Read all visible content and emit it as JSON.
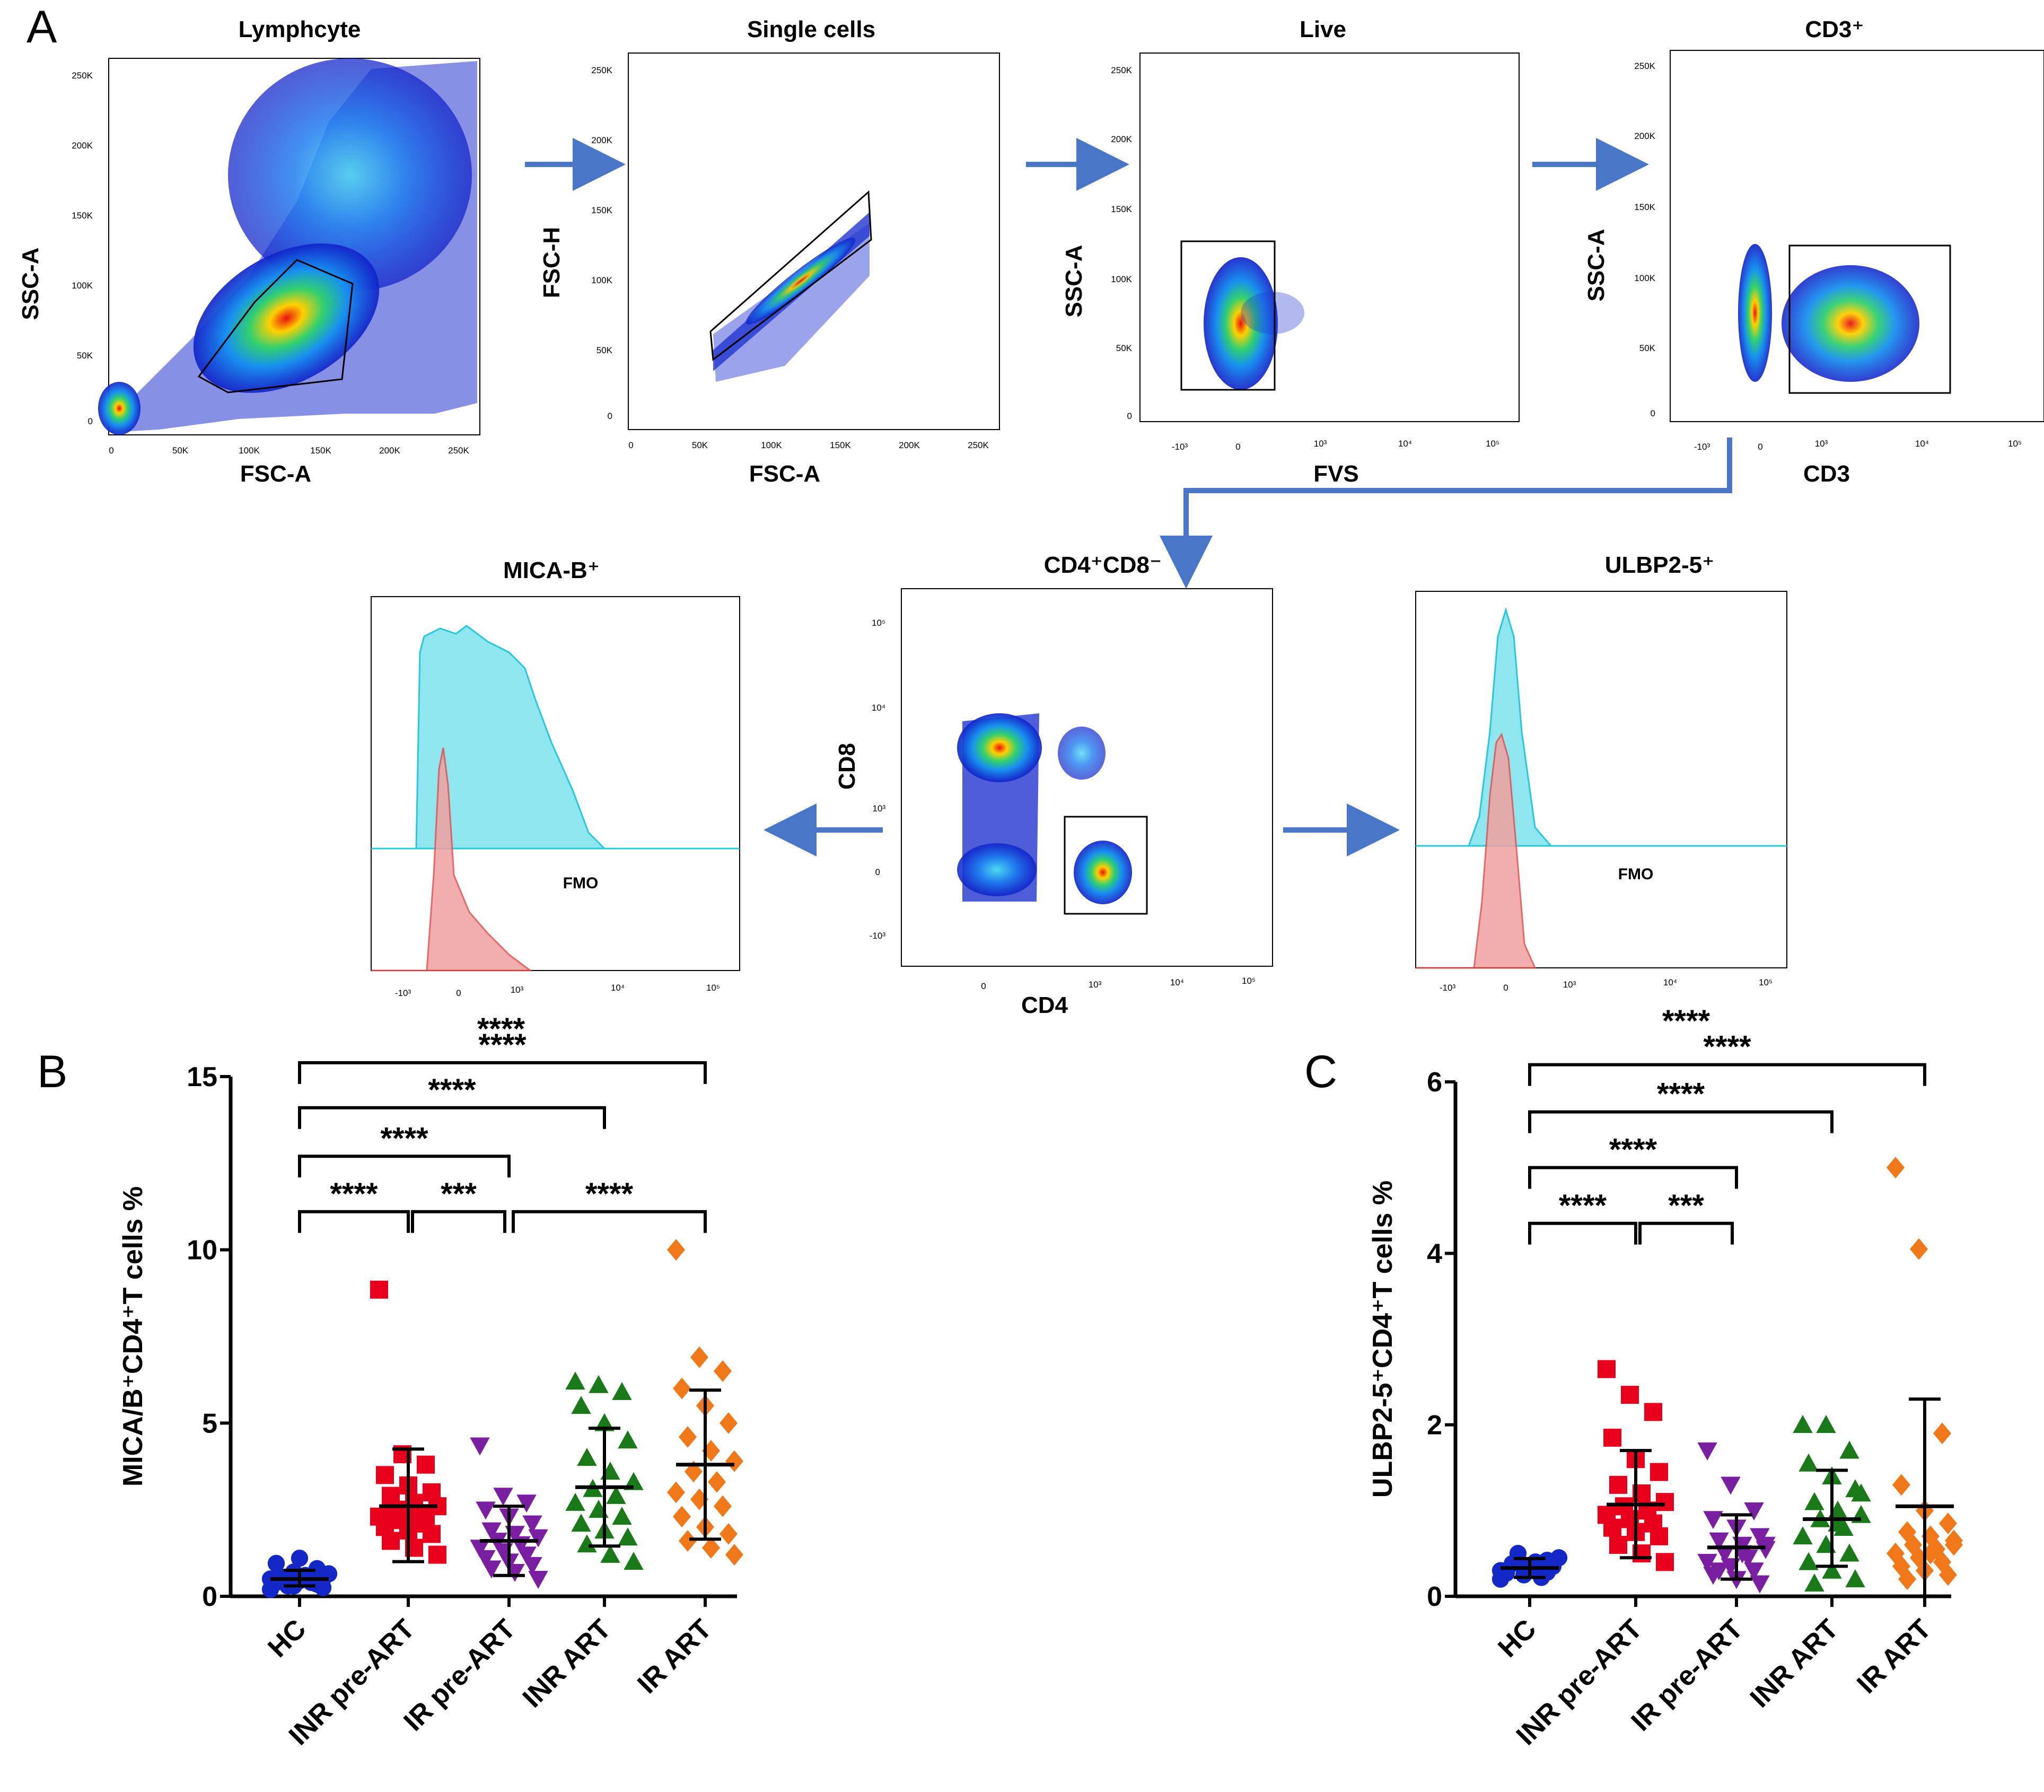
{
  "panel_letters": {
    "a": "A",
    "b": "B",
    "c": "C"
  },
  "flow": {
    "lymph": {
      "title": "Lymphcyte",
      "xlabel": "FSC-A",
      "ylabel": "SSC-A",
      "yticks": [
        "250K",
        "200K",
        "150K",
        "100K",
        "50K",
        "0"
      ],
      "xticks": [
        "0",
        "50K",
        "100K",
        "150K",
        "200K",
        "250K"
      ]
    },
    "single": {
      "title": "Single cells",
      "xlabel": "FSC-A",
      "ylabel": "FSC-H",
      "yticks": [
        "250K",
        "200K",
        "150K",
        "100K",
        "50K",
        "0"
      ],
      "xticks": [
        "0",
        "50K",
        "100K",
        "150K",
        "200K",
        "250K"
      ]
    },
    "live": {
      "title": "Live",
      "xlabel": "FVS",
      "ylabel": "SSC-A",
      "yticks": [
        "250K",
        "200K",
        "150K",
        "100K",
        "50K",
        "0"
      ],
      "xticks": [
        "-10³",
        "0",
        "10³",
        "10⁴",
        "10⁵"
      ]
    },
    "cd3": {
      "title": "CD3⁺",
      "xlabel": "CD3",
      "ylabel": "SSC-A",
      "yticks": [
        "250K",
        "200K",
        "150K",
        "100K",
        "50K",
        "0"
      ],
      "xticks": [
        "-10³",
        "0",
        "10³",
        "10⁴",
        "10⁵"
      ]
    },
    "cd4cd8": {
      "title": "CD4⁺CD8⁻",
      "xlabel": "CD4",
      "ylabel": "CD8",
      "yticks": [
        "10⁵",
        "10⁴",
        "10³",
        "0",
        "-10³"
      ],
      "xticks": [
        "0",
        "10³",
        "10⁴",
        "10⁵"
      ]
    },
    "mica": {
      "title": "MICA-B⁺",
      "fmo": "FMO",
      "xticks": [
        "-10³",
        "0",
        "10³",
        "10⁴",
        "10⁵"
      ]
    },
    "ulbp": {
      "title": "ULBP2-5⁺",
      "fmo": "FMO",
      "xticks": [
        "-10³",
        "0",
        "10³",
        "10⁴",
        "10⁵"
      ]
    },
    "sig_mica": "****",
    "sig_ulbp": "****"
  },
  "colors": {
    "hc": "#1428c8",
    "inr_pre": "#e8001c",
    "ir_pre": "#7a1fa2",
    "inr_art": "#1a7a1a",
    "ir_art": "#f07818",
    "arrow": "#4a76c8",
    "stain": "#8fe6ee",
    "stain_line": "#28c8dc",
    "fmo": "#f0a0a0",
    "fmo_line": "#e05050"
  },
  "chart_data": [
    {
      "type": "scatter",
      "id": "B",
      "ylabel": "MICA/B⁺CD4⁺T cells %",
      "ylim": [
        0,
        15
      ],
      "yticks": [
        "0",
        "5",
        "10",
        "15"
      ],
      "categories": [
        "HC",
        "INR pre-ART",
        "IR pre-ART",
        "INR ART",
        "IR ART"
      ],
      "markers": [
        "circle",
        "square",
        "triangle-down",
        "triangle-up",
        "diamond"
      ],
      "series": [
        {
          "name": "HC",
          "mean": 0.5,
          "sd_low": 0.3,
          "sd_high": 0.75,
          "values": [
            0.2,
            0.3,
            0.35,
            0.4,
            0.45,
            0.5,
            0.55,
            0.6,
            0.65,
            0.3,
            0.4,
            0.5,
            0.7,
            0.8,
            0.95,
            1.1,
            0.25,
            0.45,
            0.6
          ]
        },
        {
          "name": "INR pre-ART",
          "mean": 2.6,
          "sd_low": 1.0,
          "sd_high": 4.25,
          "values": [
            8.85,
            4.1,
            3.8,
            3.5,
            3.2,
            3.0,
            2.9,
            2.7,
            2.6,
            2.5,
            2.4,
            2.3,
            2.2,
            2.1,
            2.0,
            1.9,
            1.8,
            1.6,
            1.4,
            1.2
          ]
        },
        {
          "name": "IR pre-ART",
          "mean": 1.6,
          "sd_low": 0.6,
          "sd_high": 2.6,
          "values": [
            4.35,
            2.9,
            2.7,
            2.5,
            2.3,
            2.1,
            1.9,
            1.8,
            1.7,
            1.6,
            1.5,
            1.4,
            1.3,
            1.2,
            1.1,
            1.0,
            0.9,
            0.8,
            0.7,
            0.5
          ]
        },
        {
          "name": "INR ART",
          "mean": 3.15,
          "sd_low": 1.45,
          "sd_high": 4.85,
          "values": [
            6.2,
            6.1,
            5.9,
            5.5,
            5.0,
            4.5,
            4.0,
            3.6,
            3.3,
            3.1,
            2.9,
            2.7,
            2.5,
            2.3,
            2.1,
            1.9,
            1.7,
            1.5,
            1.2,
            1.0
          ]
        },
        {
          "name": "IR ART",
          "mean": 3.8,
          "sd_low": 1.65,
          "sd_high": 5.95,
          "values": [
            10.0,
            6.9,
            6.5,
            6.0,
            5.5,
            5.0,
            4.6,
            4.2,
            3.9,
            3.6,
            3.3,
            3.0,
            2.8,
            2.6,
            2.3,
            2.0,
            1.8,
            1.6,
            1.4,
            1.2
          ]
        }
      ],
      "comparisons": [
        {
          "from": 0,
          "to": 4,
          "y": 15.4,
          "label": "****"
        },
        {
          "from": 0,
          "to": 3,
          "y": 14.1,
          "label": "****"
        },
        {
          "from": 0,
          "to": 2,
          "y": 12.7,
          "label": "****"
        },
        {
          "from": 0,
          "to": 1,
          "y": 11.1,
          "label": "****"
        },
        {
          "from": 1,
          "to": 2,
          "y": 11.1,
          "label": "***"
        },
        {
          "from": 2,
          "to": 4,
          "y": 11.1,
          "label": "****"
        }
      ]
    },
    {
      "type": "scatter",
      "id": "C",
      "ylabel": "ULBP2-5⁺CD4⁺T cells %",
      "ylim": [
        0,
        6
      ],
      "yticks": [
        "0",
        "2",
        "4",
        "6"
      ],
      "categories": [
        "HC",
        "INR pre-ART",
        "IR pre-ART",
        "INR ART",
        "IR ART"
      ],
      "markers": [
        "circle",
        "square",
        "triangle-down",
        "triangle-up",
        "diamond"
      ],
      "series": [
        {
          "name": "HC",
          "mean": 0.33,
          "sd_low": 0.22,
          "sd_high": 0.44,
          "values": [
            0.2,
            0.25,
            0.28,
            0.3,
            0.32,
            0.35,
            0.38,
            0.4,
            0.45,
            0.5,
            0.22,
            0.3,
            0.36,
            0.42,
            0.27,
            0.33
          ]
        },
        {
          "name": "INR pre-ART",
          "mean": 1.07,
          "sd_low": 0.45,
          "sd_high": 1.7,
          "values": [
            2.65,
            2.35,
            2.15,
            1.85,
            1.6,
            1.45,
            1.3,
            1.2,
            1.1,
            1.05,
            1.0,
            0.95,
            0.9,
            0.85,
            0.8,
            0.75,
            0.7,
            0.6,
            0.5,
            0.4
          ]
        },
        {
          "name": "IR pre-ART",
          "mean": 0.57,
          "sd_low": 0.2,
          "sd_high": 0.95,
          "values": [
            1.7,
            1.3,
            1.0,
            0.9,
            0.8,
            0.7,
            0.65,
            0.6,
            0.55,
            0.5,
            0.45,
            0.4,
            0.35,
            0.3,
            0.25,
            0.2,
            0.15,
            0.3,
            0.5,
            0.6
          ]
        },
        {
          "name": "INR ART",
          "mean": 0.9,
          "sd_low": 0.35,
          "sd_high": 1.47,
          "values": [
            2.0,
            2.0,
            1.7,
            1.55,
            1.4,
            1.25,
            1.1,
            1.0,
            0.95,
            0.9,
            0.8,
            0.7,
            0.6,
            0.5,
            0.4,
            0.3,
            0.2,
            0.15,
            0.85,
            1.2
          ]
        },
        {
          "name": "IR ART",
          "mean": 1.05,
          "sd_low": 0.0,
          "sd_high": 2.3,
          "values": [
            5.0,
            4.05,
            1.9,
            1.3,
            1.0,
            0.85,
            0.75,
            0.7,
            0.65,
            0.6,
            0.55,
            0.5,
            0.45,
            0.4,
            0.35,
            0.3,
            0.25,
            0.2,
            0.5,
            0.6
          ]
        }
      ],
      "comparisons": [
        {
          "from": 0,
          "to": 4,
          "y": 6.2,
          "label": "****"
        },
        {
          "from": 0,
          "to": 3,
          "y": 5.65,
          "label": "****"
        },
        {
          "from": 0,
          "to": 2,
          "y": 5.0,
          "label": "****"
        },
        {
          "from": 0,
          "to": 1,
          "y": 4.35,
          "label": "****"
        },
        {
          "from": 1,
          "to": 2,
          "y": 4.35,
          "label": "***"
        }
      ]
    }
  ]
}
